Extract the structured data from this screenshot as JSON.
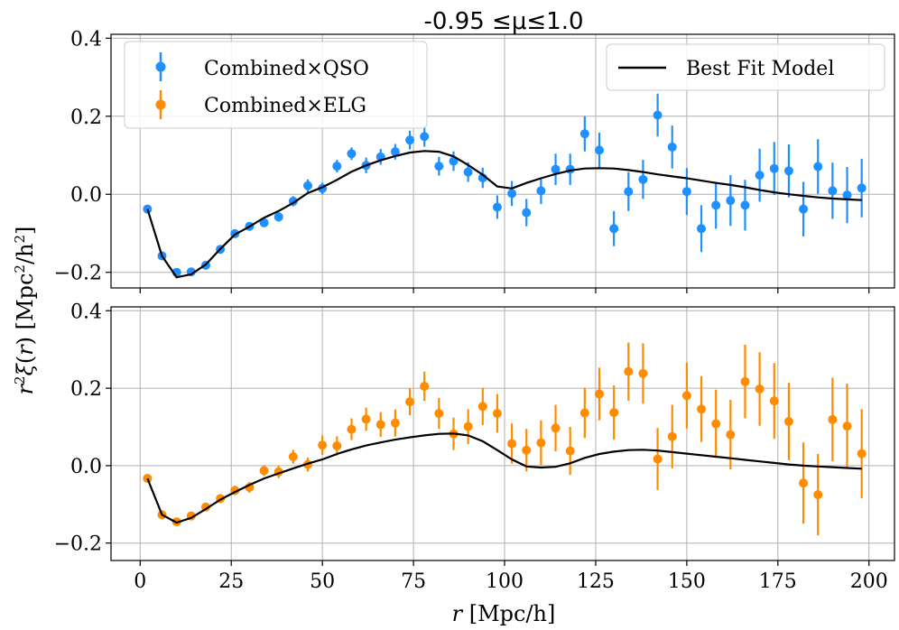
{
  "chart_data": [
    {
      "type": "scatter",
      "title": "-0.95  ≤μ≤1.0",
      "xlabel": "",
      "ylabel": "r²ξ(r) [Mpc²/h²]",
      "xlim": [
        -8,
        207
      ],
      "ylim": [
        -0.24,
        0.41
      ],
      "yticks": [
        "0.4",
        "0.2",
        "0.0",
        "−0.2"
      ],
      "ytick_values": [
        0.4,
        0.2,
        0.0,
        -0.2
      ],
      "xtick_values": [
        0,
        25,
        50,
        75,
        100,
        125,
        150,
        175,
        200
      ],
      "grid": true,
      "legend": [
        {
          "label": "Combined×QSO",
          "placement": "top-left"
        },
        {
          "label": "Best Fit Model",
          "placement": "top-right"
        }
      ],
      "series": [
        {
          "name": "Combined×QSO",
          "color": "#1e90ff",
          "x": [
            2,
            6,
            10,
            14,
            18,
            22,
            26,
            30,
            34,
            38,
            42,
            46,
            50,
            54,
            58,
            62,
            66,
            70,
            74,
            78,
            82,
            86,
            90,
            94,
            98,
            102,
            106,
            110,
            114,
            118,
            122,
            126,
            130,
            134,
            138,
            142,
            146,
            150,
            154,
            158,
            162,
            166,
            170,
            174,
            178,
            182,
            186,
            190,
            194,
            198
          ],
          "y": [
            -0.038,
            -0.158,
            -0.2,
            -0.199,
            -0.182,
            -0.141,
            -0.101,
            -0.082,
            -0.073,
            -0.058,
            -0.018,
            0.022,
            0.015,
            0.072,
            0.104,
            0.074,
            0.096,
            0.109,
            0.139,
            0.148,
            0.072,
            0.085,
            0.057,
            0.042,
            -0.033,
            0.002,
            -0.047,
            0.009,
            0.064,
            0.064,
            0.155,
            0.113,
            -0.088,
            0.007,
            0.038,
            0.203,
            0.121,
            0.007,
            -0.088,
            -0.028,
            -0.016,
            -0.028,
            0.049,
            0.066,
            0.06,
            -0.038,
            0.071,
            0.009,
            -0.002,
            0.016
          ],
          "err": [
            0.0,
            0.0,
            0.0,
            0.0,
            0.0,
            0.0,
            0.0,
            0.0,
            0.008,
            0.012,
            0.013,
            0.016,
            0.015,
            0.016,
            0.016,
            0.02,
            0.02,
            0.02,
            0.024,
            0.026,
            0.024,
            0.025,
            0.025,
            0.026,
            0.03,
            0.032,
            0.035,
            0.034,
            0.04,
            0.04,
            0.045,
            0.045,
            0.045,
            0.05,
            0.05,
            0.055,
            0.055,
            0.06,
            0.06,
            0.06,
            0.065,
            0.065,
            0.068,
            0.068,
            0.068,
            0.07,
            0.07,
            0.072,
            0.072,
            0.075
          ]
        },
        {
          "name": "Best Fit Model",
          "color": "#000000",
          "style": "line",
          "x": [
            2,
            6,
            10,
            14,
            18,
            22,
            26,
            30,
            34,
            38,
            42,
            46,
            50,
            54,
            58,
            62,
            66,
            70,
            74,
            78,
            82,
            86,
            90,
            94,
            98,
            102,
            106,
            110,
            114,
            118,
            122,
            126,
            130,
            134,
            138,
            142,
            146,
            150,
            154,
            158,
            162,
            166,
            170,
            174,
            178,
            182,
            186,
            190,
            194,
            198
          ],
          "y": [
            -0.038,
            -0.158,
            -0.213,
            -0.205,
            -0.18,
            -0.14,
            -0.103,
            -0.083,
            -0.06,
            -0.043,
            -0.022,
            0.003,
            0.018,
            0.037,
            0.058,
            0.074,
            0.087,
            0.098,
            0.107,
            0.111,
            0.109,
            0.097,
            0.075,
            0.05,
            0.02,
            0.015,
            0.029,
            0.041,
            0.052,
            0.061,
            0.066,
            0.067,
            0.066,
            0.062,
            0.057,
            0.051,
            0.046,
            0.041,
            0.035,
            0.029,
            0.024,
            0.018,
            0.011,
            0.005,
            0.0,
            -0.004,
            -0.008,
            -0.011,
            -0.013,
            -0.015
          ]
        }
      ]
    },
    {
      "type": "scatter",
      "title": "",
      "xlabel": "r [Mpc/h]",
      "ylabel": "r²ξ(r) [Mpc²/h²]",
      "xlim": [
        -8,
        207
      ],
      "ylim": [
        -0.245,
        0.41
      ],
      "yticks": [
        "0.4",
        "0.2",
        "0.0",
        "−0.2"
      ],
      "ytick_values": [
        0.4,
        0.2,
        0.0,
        -0.2
      ],
      "xticks": [
        "0",
        "25",
        "50",
        "75",
        "100",
        "125",
        "150",
        "175",
        "200"
      ],
      "xtick_values": [
        0,
        25,
        50,
        75,
        100,
        125,
        150,
        175,
        200
      ],
      "grid": true,
      "legend": [
        {
          "label": "Combined×ELG",
          "placement": "top-left"
        }
      ],
      "series": [
        {
          "name": "Combined×ELG",
          "color": "#ff8c00",
          "x": [
            2,
            6,
            10,
            14,
            18,
            22,
            26,
            30,
            34,
            38,
            42,
            46,
            50,
            54,
            58,
            62,
            66,
            70,
            74,
            78,
            82,
            86,
            90,
            94,
            98,
            102,
            106,
            110,
            114,
            118,
            122,
            126,
            130,
            134,
            138,
            142,
            146,
            150,
            154,
            158,
            162,
            166,
            170,
            174,
            178,
            182,
            186,
            190,
            194,
            198
          ],
          "y": [
            -0.033,
            -0.127,
            -0.145,
            -0.13,
            -0.107,
            -0.085,
            -0.064,
            -0.056,
            -0.013,
            -0.016,
            0.023,
            0.003,
            0.053,
            0.051,
            0.094,
            0.12,
            0.106,
            0.11,
            0.165,
            0.205,
            0.135,
            0.082,
            0.101,
            0.153,
            0.135,
            0.057,
            0.04,
            0.059,
            0.097,
            0.038,
            0.136,
            0.185,
            0.137,
            0.243,
            0.238,
            0.017,
            0.075,
            0.181,
            0.146,
            0.108,
            0.08,
            0.217,
            0.198,
            0.167,
            0.114,
            -0.045,
            -0.075,
            0.119,
            0.102,
            0.031
          ],
          "err": [
            0.0,
            0.0,
            0.0,
            0.0,
            0.0,
            0.0,
            0.012,
            0.014,
            0.014,
            0.016,
            0.018,
            0.018,
            0.025,
            0.025,
            0.028,
            0.03,
            0.032,
            0.035,
            0.035,
            0.038,
            0.04,
            0.042,
            0.045,
            0.048,
            0.05,
            0.052,
            0.055,
            0.058,
            0.06,
            0.062,
            0.065,
            0.068,
            0.07,
            0.075,
            0.078,
            0.08,
            0.082,
            0.085,
            0.085,
            0.088,
            0.09,
            0.095,
            0.095,
            0.098,
            0.1,
            0.105,
            0.105,
            0.108,
            0.11,
            0.115
          ]
        },
        {
          "name": "Best Fit Model",
          "color": "#000000",
          "style": "line",
          "x": [
            2,
            6,
            10,
            14,
            18,
            22,
            26,
            30,
            34,
            38,
            42,
            46,
            50,
            54,
            58,
            62,
            66,
            70,
            74,
            78,
            82,
            86,
            90,
            94,
            98,
            102,
            106,
            110,
            114,
            118,
            122,
            126,
            130,
            134,
            138,
            142,
            146,
            150,
            154,
            158,
            162,
            166,
            170,
            174,
            178,
            182,
            186,
            190,
            194,
            198
          ],
          "y": [
            -0.033,
            -0.127,
            -0.147,
            -0.135,
            -0.112,
            -0.088,
            -0.068,
            -0.05,
            -0.033,
            -0.02,
            -0.007,
            0.005,
            0.016,
            0.03,
            0.042,
            0.052,
            0.06,
            0.067,
            0.073,
            0.078,
            0.082,
            0.083,
            0.078,
            0.063,
            0.04,
            0.016,
            -0.002,
            -0.005,
            -0.003,
            0.006,
            0.02,
            0.03,
            0.036,
            0.04,
            0.041,
            0.039,
            0.035,
            0.031,
            0.027,
            0.023,
            0.019,
            0.015,
            0.011,
            0.007,
            0.003,
            0.0,
            -0.002,
            -0.004,
            -0.006,
            -0.008
          ]
        }
      ]
    }
  ]
}
